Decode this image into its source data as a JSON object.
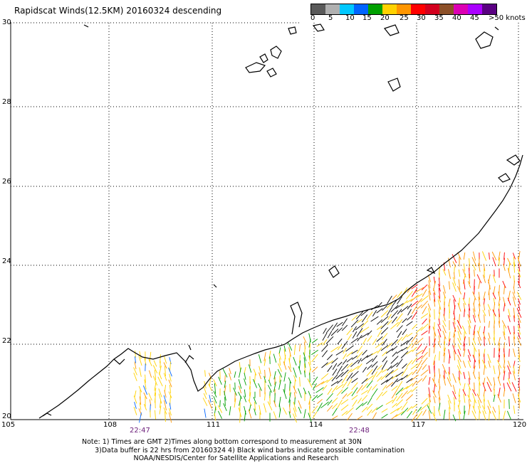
{
  "title": "Rapidscat Winds(12.5KM) 20160324 descending",
  "legend": {
    "colors": [
      "#5a5a5a",
      "#b0b0b0",
      "#00c8ff",
      "#0064ff",
      "#00a000",
      "#ffd200",
      "#ff9600",
      "#ff0000",
      "#d2001e",
      "#8c5028",
      "#dc00b4",
      "#aa00ff",
      "#5a0082"
    ],
    "labels": [
      "0",
      "5",
      "10",
      "15",
      "20",
      "25",
      "30",
      "35",
      "40",
      "45",
      ">50 knots"
    ]
  },
  "lat_labels": [
    "30",
    "28",
    "26",
    "24",
    "22",
    "20"
  ],
  "lon_labels": [
    "105",
    "108",
    "111",
    "114",
    "117",
    "120"
  ],
  "time_labels": [
    "22:47",
    "22:48"
  ],
  "notes": [
    "Note: 1) Times are GMT 2)Times along bottom correspond to measurement at 30N",
    "      3)Data buffer is 22 hrs from 20160324 4) Black wind barbs indicate possible contamination",
    "                        NOAA/NESDIS/Center for Satellite Applications and Research"
  ]
}
